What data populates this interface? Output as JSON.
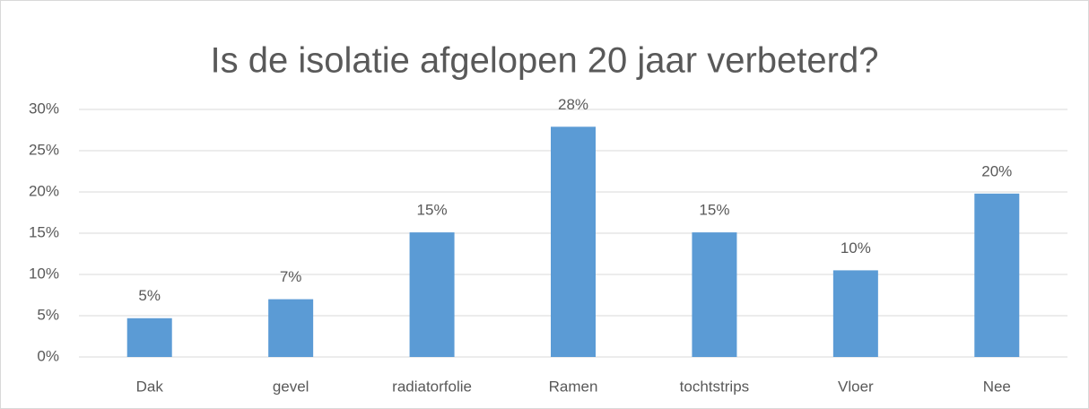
{
  "chart_data": {
    "type": "bar",
    "title": "Is de isolatie afgelopen 20 jaar verbeterd?",
    "categories": [
      "Dak",
      "gevel",
      "radiatorfolie",
      "Ramen",
      "tochtstrips",
      "Vloer",
      "Nee"
    ],
    "values": [
      4.7,
      7.0,
      15.1,
      27.9,
      15.1,
      10.5,
      19.8
    ],
    "value_labels": [
      "5%",
      "7%",
      "15%",
      "28%",
      "15%",
      "10%",
      "20%"
    ],
    "color": "#5b9bd5",
    "ylim": [
      0,
      30
    ],
    "yticks": [
      {
        "value": 0,
        "label": "0%"
      },
      {
        "value": 5,
        "label": "5%"
      },
      {
        "value": 10,
        "label": "10%"
      },
      {
        "value": 15,
        "label": "15%"
      },
      {
        "value": 20,
        "label": "20%"
      },
      {
        "value": 25,
        "label": "25%"
      },
      {
        "value": 30,
        "label": "30%"
      }
    ],
    "grid": true
  }
}
